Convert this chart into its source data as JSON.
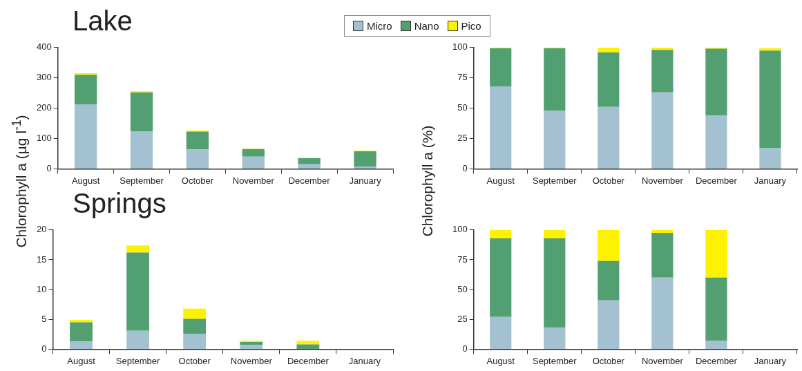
{
  "chart_data": [
    {
      "type": "bar",
      "title": "Lake",
      "ylabel": "Chlorophyll a (µg l$^{-1}$)",
      "stacked": true,
      "legend": "top",
      "categories": [
        "August",
        "September",
        "October",
        "November",
        "December",
        "January"
      ],
      "ylim": [
        0,
        400
      ],
      "yticks": [
        0,
        100,
        200,
        300,
        400
      ],
      "series": [
        {
          "name": "Micro",
          "color": "#a3c1d1",
          "values": [
            213,
            123,
            64,
            40,
            15,
            8
          ]
        },
        {
          "name": "Nano",
          "color": "#52a072",
          "values": [
            97,
            129,
            59,
            25,
            20,
            50
          ]
        },
        {
          "name": "Pico",
          "color": "#fff200",
          "values": [
            5,
            4,
            4,
            2,
            2,
            2
          ]
        }
      ]
    },
    {
      "type": "bar",
      "ylabel": "Chlorophyll a (%)",
      "stacked": true,
      "categories": [
        "August",
        "September",
        "October",
        "November",
        "December",
        "January"
      ],
      "ylim": [
        0,
        100
      ],
      "yticks": [
        0,
        25,
        50,
        75,
        100
      ],
      "series": [
        {
          "color": "#a3c1d1",
          "values": [
            68,
            48,
            51,
            63,
            44,
            17
          ]
        },
        {
          "color": "#52a072",
          "values": [
            31.5,
            51.5,
            45,
            35,
            55,
            80.5
          ]
        },
        {
          "color": "#fff200",
          "values": [
            0.5,
            0.5,
            4,
            2,
            1,
            2
          ]
        }
      ]
    },
    {
      "type": "bar",
      "title": "Springs",
      "stacked": true,
      "categories": [
        "August",
        "September",
        "October",
        "November",
        "December",
        "January"
      ],
      "ylim": [
        0,
        20
      ],
      "yticks": [
        0,
        5,
        10,
        15,
        20
      ],
      "series": [
        {
          "color": "#a3c1d1",
          "values": [
            1.3,
            3.1,
            2.6,
            0.7,
            0,
            null
          ]
        },
        {
          "color": "#52a072",
          "values": [
            3.2,
            13.1,
            2.5,
            0.5,
            0.8,
            null
          ]
        },
        {
          "color": "#fff200",
          "values": [
            0.4,
            1.2,
            1.7,
            0.2,
            0.6,
            null
          ]
        }
      ]
    },
    {
      "type": "bar",
      "stacked": true,
      "categories": [
        "August",
        "September",
        "October",
        "November",
        "December",
        "January"
      ],
      "ylim": [
        0,
        100
      ],
      "yticks": [
        0,
        25,
        50,
        75,
        100
      ],
      "series": [
        {
          "color": "#a3c1d1",
          "values": [
            27,
            18,
            41,
            60,
            7,
            null
          ]
        },
        {
          "color": "#52a072",
          "values": [
            66,
            75,
            33,
            37.5,
            53,
            null
          ]
        },
        {
          "color": "#fff200",
          "values": [
            7,
            7,
            26,
            2.5,
            40,
            null
          ]
        }
      ]
    }
  ]
}
